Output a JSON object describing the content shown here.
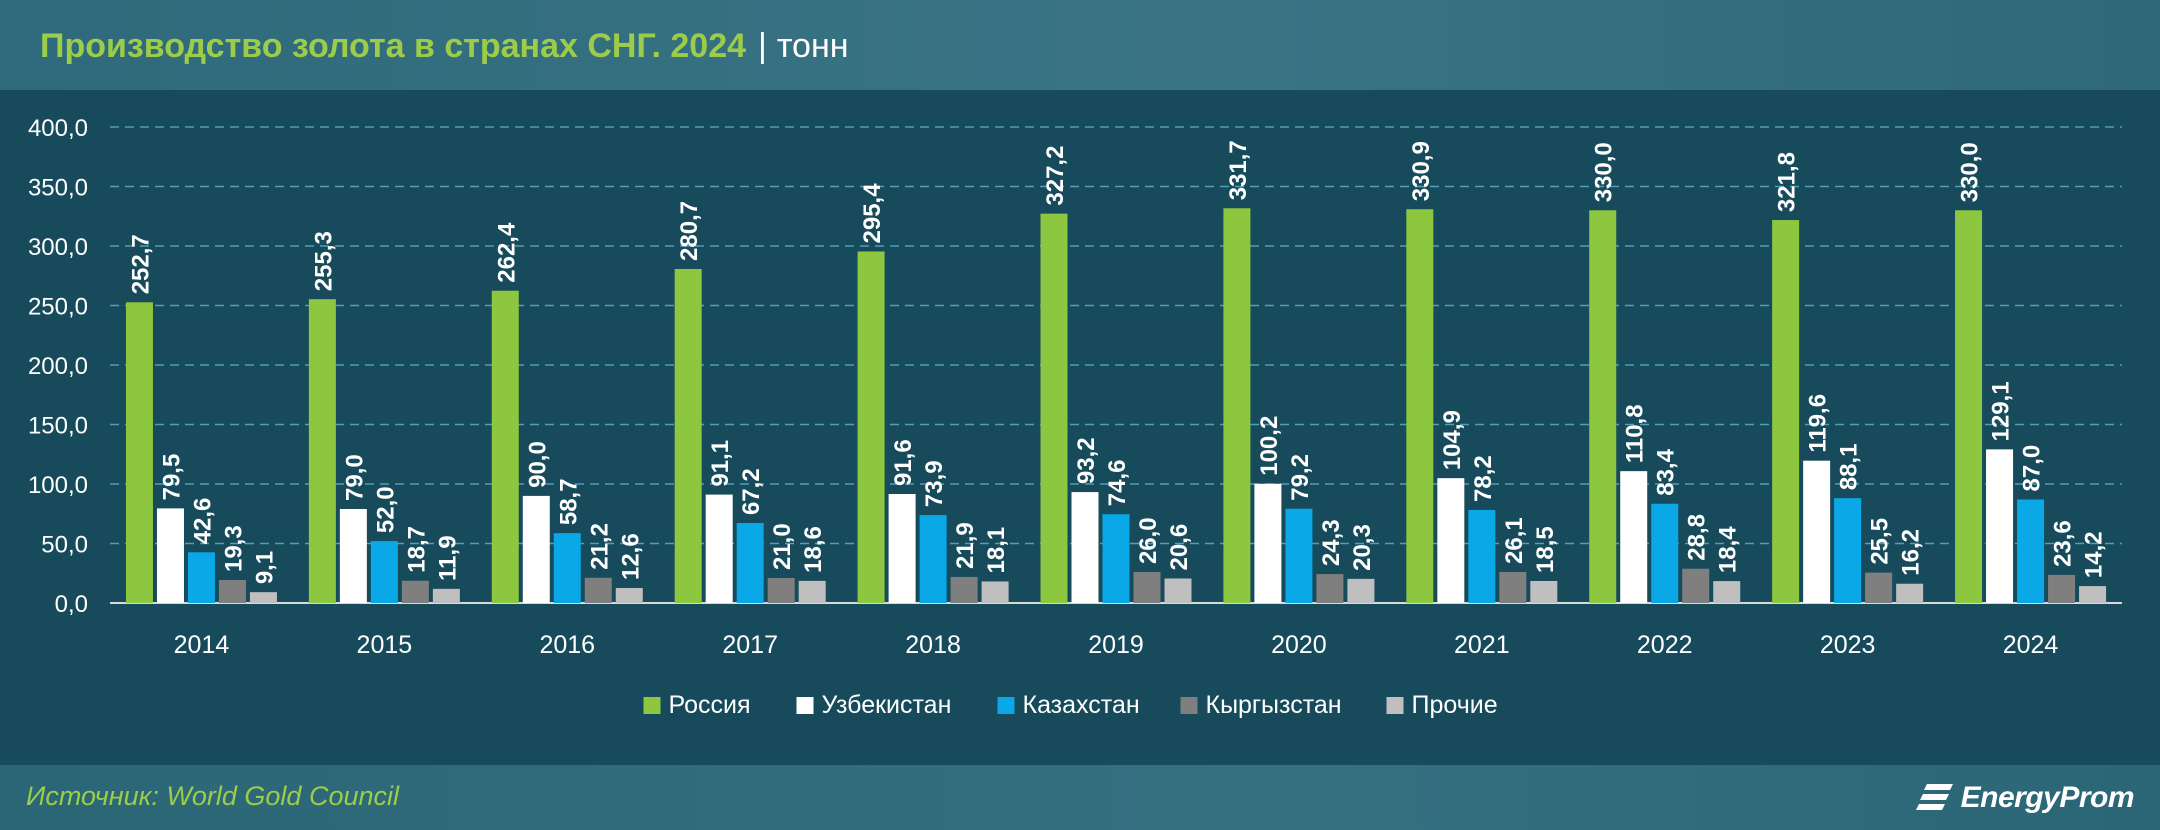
{
  "header": {
    "title": "Производство золота в странах СНГ. 2024",
    "separator": "|",
    "unit": "тонн"
  },
  "footer": {
    "source": "Источник: World Gold Council",
    "brand": "EnergyProm"
  },
  "colors": {
    "background": "#1a4d5e",
    "title_accent": "#9ccc4a",
    "grid": "#4fa0b8"
  },
  "chart_data": {
    "type": "bar",
    "categories": [
      "2014",
      "2015",
      "2016",
      "2017",
      "2018",
      "2019",
      "2020",
      "2021",
      "2022",
      "2023",
      "2024"
    ],
    "series": [
      {
        "name": "Россия",
        "color": "#8dc63f",
        "values": [
          252.7,
          255.3,
          262.4,
          280.7,
          295.4,
          327.2,
          331.7,
          330.9,
          330.0,
          321.8,
          330.0
        ]
      },
      {
        "name": "Узбекистан",
        "color": "#ffffff",
        "values": [
          79.5,
          79.0,
          90.0,
          91.1,
          91.6,
          93.2,
          100.2,
          104.9,
          110.8,
          119.6,
          129.1
        ]
      },
      {
        "name": "Казахстан",
        "color": "#0aa8e6",
        "values": [
          42.6,
          52.0,
          58.7,
          67.2,
          73.9,
          74.6,
          79.2,
          78.2,
          83.4,
          88.1,
          87.0
        ]
      },
      {
        "name": "Кыргызстан",
        "color": "#7f7f7f",
        "values": [
          19.3,
          18.7,
          21.2,
          21.0,
          21.9,
          26.0,
          24.3,
          26.1,
          28.8,
          25.5,
          23.6
        ]
      },
      {
        "name": "Прочие",
        "color": "#bfbfbf",
        "values": [
          9.1,
          11.9,
          12.6,
          18.6,
          18.1,
          20.6,
          20.3,
          18.5,
          18.4,
          16.2,
          14.2
        ]
      }
    ],
    "yticks": [
      "0,0",
      "50,0",
      "100,0",
      "150,0",
      "200,0",
      "250,0",
      "300,0",
      "350,0",
      "400,0"
    ],
    "ylim": [
      0,
      400
    ],
    "grid": true,
    "legend_position": "bottom",
    "value_labels": true,
    "decimal_separator": ","
  }
}
